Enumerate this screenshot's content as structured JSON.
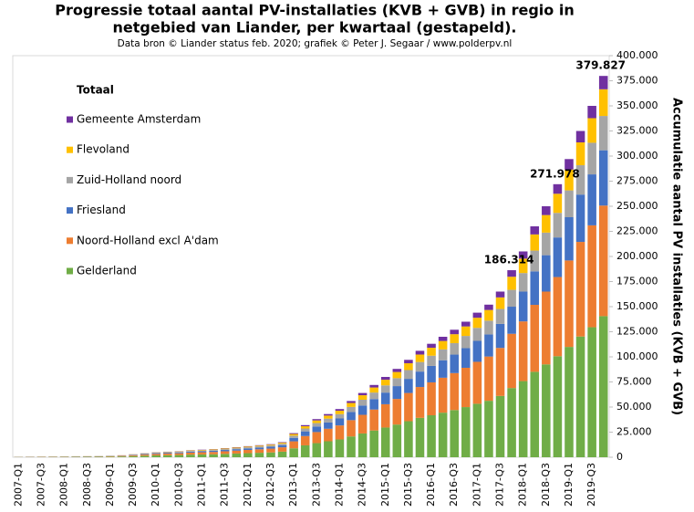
{
  "chart_data": {
    "type": "stacked_bar",
    "title": [
      "Progressie totaal aantal PV-installaties (KVB + GVB) in regio in",
      "netgebied van Liander, per kwartaal (gestapeld)."
    ],
    "subtitle": "Data bron © Liander status feb. 2020; grafiek © Peter J. Segaar / www.polderpv.nl",
    "y_label": "Accumulatie aantal PV installaties (KVB + GVB)",
    "legend_title": "Totaal",
    "legend": "upper left",
    "grid": false,
    "categories": [
      "2007-Q1",
      null,
      "2007-Q3",
      null,
      "2008-Q1",
      null,
      "2008-Q3",
      null,
      "2009-Q1",
      null,
      "2009-Q3",
      null,
      "2010-Q1",
      null,
      "2010-Q3",
      null,
      "2011-Q1",
      null,
      "2011-Q3",
      null,
      "2012-Q1",
      null,
      "2012-Q3",
      null,
      "2013-Q1",
      null,
      "2013-Q3",
      null,
      "2014-Q1",
      null,
      "2014-Q3",
      null,
      "2015-Q1",
      null,
      "2015-Q3",
      null,
      "2016-Q1",
      null,
      "2016-Q3",
      null,
      "2017-Q1",
      null,
      "2017-Q3",
      null,
      "2018-Q1",
      null,
      "2018-Q3",
      null,
      "2019-Q1",
      null,
      "2019-Q3",
      null
    ],
    "series": [
      {
        "name": "Gelderland",
        "color": "#70ad47",
        "values": [
          190,
          220,
          260,
          300,
          330,
          370,
          410,
          440,
          560,
          740,
          1110,
          1480,
          1850,
          2040,
          2220,
          2590,
          2780,
          2960,
          3330,
          3700,
          4070,
          4440,
          4810,
          5550,
          8880,
          11840,
          14060,
          15910,
          17760,
          20720,
          23680,
          26640,
          29600,
          32560,
          35890,
          39220,
          41810,
          44400,
          46990,
          49950,
          53280,
          56240,
          61050,
          68936,
          75850,
          85100,
          92500,
          100632,
          109890,
          120250,
          129500,
          140536
        ]
      },
      {
        "name": "Noord-Holland excl A'dam",
        "color": "#ed7d31",
        "values": [
          140,
          170,
          200,
          230,
          260,
          290,
          320,
          350,
          430,
          580,
          870,
          1160,
          1450,
          1600,
          1740,
          2030,
          2180,
          2320,
          2610,
          2900,
          3190,
          3480,
          3770,
          4350,
          6960,
          9280,
          11020,
          12470,
          13920,
          16240,
          18560,
          20880,
          23200,
          25520,
          28130,
          30740,
          32770,
          34800,
          36830,
          39150,
          41760,
          44080,
          47850,
          54031,
          59450,
          66700,
          72500,
          78874,
          86130,
          94250,
          101500,
          110150
        ]
      },
      {
        "name": "Friesland",
        "color": "#4472c4",
        "values": [
          70,
          90,
          100,
          120,
          130,
          150,
          160,
          170,
          220,
          290,
          440,
          580,
          730,
          800,
          870,
          1020,
          1090,
          1160,
          1310,
          1450,
          1600,
          1740,
          1890,
          2180,
          3480,
          4640,
          5510,
          6240,
          6960,
          8120,
          9280,
          10440,
          11600,
          12760,
          14070,
          15370,
          16390,
          17400,
          18420,
          19580,
          20880,
          22040,
          23930,
          27016,
          29730,
          33350,
          36250,
          39437,
          43070,
          47130,
          50750,
          55075
        ]
      },
      {
        "name": "Zuid-Holland noord",
        "color": "#a5a5a5",
        "values": [
          50,
          50,
          60,
          70,
          80,
          90,
          100,
          110,
          130,
          180,
          270,
          360,
          450,
          500,
          540,
          630,
          680,
          720,
          810,
          900,
          990,
          1080,
          1170,
          1350,
          2160,
          2880,
          3420,
          3870,
          4320,
          5040,
          5760,
          6480,
          7200,
          7920,
          8730,
          9540,
          10170,
          10800,
          11430,
          12150,
          12960,
          13680,
          14850,
          16768,
          18450,
          20700,
          22500,
          24478,
          26730,
          29250,
          31500,
          34184
        ]
      },
      {
        "name": "Flevoland",
        "color": "#ffc000",
        "values": [
          30,
          40,
          50,
          50,
          60,
          70,
          80,
          80,
          110,
          140,
          210,
          280,
          350,
          390,
          420,
          490,
          530,
          560,
          630,
          700,
          770,
          840,
          910,
          1050,
          1680,
          2240,
          2660,
          3010,
          3360,
          3920,
          4480,
          5040,
          5600,
          6160,
          6790,
          7420,
          7910,
          8400,
          8890,
          9450,
          10080,
          10640,
          11550,
          13042,
          14350,
          16100,
          17500,
          19038,
          20790,
          22750,
          24500,
          26588
        ]
      },
      {
        "name": "Gemeente Amsterdam",
        "color": "#7030a0",
        "values": [
          20,
          30,
          30,
          30,
          40,
          30,
          30,
          50,
          50,
          70,
          100,
          140,
          170,
          190,
          210,
          240,
          260,
          280,
          320,
          350,
          390,
          420,
          460,
          530,
          840,
          1120,
          1330,
          1510,
          1680,
          1960,
          2240,
          2520,
          2800,
          3080,
          3400,
          3710,
          3960,
          4200,
          4450,
          4730,
          5040,
          5320,
          5780,
          6521,
          7180,
          8050,
          8750,
          9519,
          10390,
          11370,
          12250,
          13294
        ]
      }
    ],
    "annotations": [
      "186.314",
      "271.978",
      "379.827"
    ],
    "ylim": [
      0,
      400000
    ],
    "yticks": [
      0,
      {
        "value": 25000,
        "label": "25.000"
      },
      {
        "value": 50000,
        "label": "50.000"
      },
      {
        "value": 75000,
        "label": "75.000"
      },
      {
        "value": 100000,
        "label": "100.000"
      },
      {
        "value": 125000,
        "label": "125.000"
      },
      {
        "value": 150000,
        "label": "150.000"
      },
      {
        "value": 175000,
        "label": "175.000"
      },
      {
        "value": 200000,
        "label": "200.000"
      },
      {
        "value": 225000,
        "label": "225.000"
      },
      {
        "value": 250000,
        "label": "250.000"
      },
      {
        "value": 275000,
        "label": "275.000"
      },
      {
        "value": 300000,
        "label": "300.000"
      },
      {
        "value": 325000,
        "label": "325.000"
      },
      {
        "value": 350000,
        "label": "350.000"
      },
      {
        "value": 375000,
        "label": "375.000"
      },
      {
        "value": 400000,
        "label": "400.000"
      }
    ]
  }
}
